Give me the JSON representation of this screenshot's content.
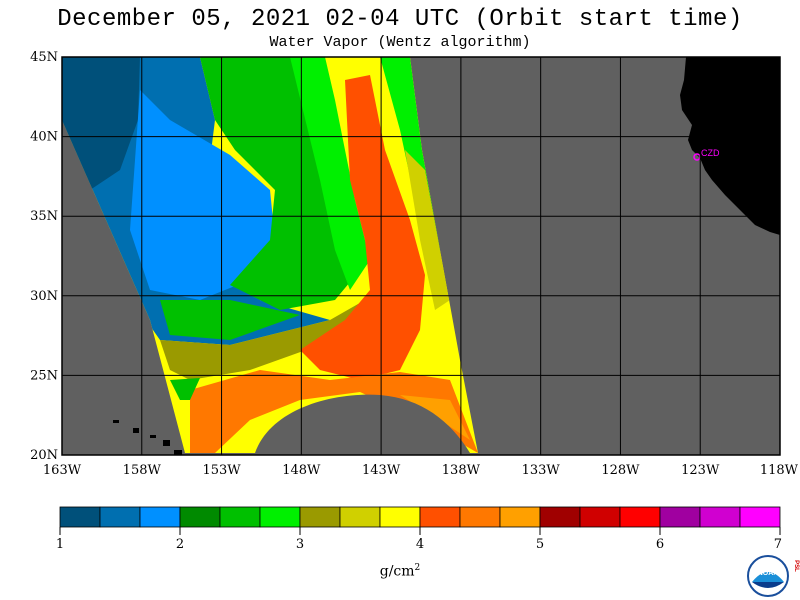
{
  "title": "December 05, 2021  02-04 UTC  (Orbit start time)",
  "subtitle": "Water Vapor (Wentz algorithm)",
  "map": {
    "lon_range": [
      -163,
      -118
    ],
    "lat_range": [
      20,
      45
    ],
    "lat_labels": [
      "45N",
      "40N",
      "35N",
      "30N",
      "25N",
      "20N"
    ],
    "lat_values": [
      45,
      40,
      35,
      30,
      25,
      20
    ],
    "lon_labels": [
      "163W",
      "158W",
      "153W",
      "148W",
      "143W",
      "138W",
      "133W",
      "128W",
      "123W",
      "118W"
    ],
    "lon_values": [
      -163,
      -158,
      -153,
      -148,
      -143,
      -138,
      -133,
      -128,
      -123,
      -118
    ],
    "station_label": "CZD",
    "colors": {
      "no_data": "#606060",
      "land": "#000000",
      "station": "#ff00ff",
      "grid": "#000000"
    }
  },
  "colorbar": {
    "unit_base": "g/cm",
    "unit_exp": "2",
    "tick_labels": [
      "1",
      "2",
      "3",
      "4",
      "5",
      "6",
      "7"
    ],
    "tick_values": [
      1,
      2,
      3,
      4,
      5,
      6,
      7
    ],
    "colors": [
      "#00507a",
      "#006fb0",
      "#0090ff",
      "#008a00",
      "#00c000",
      "#00f000",
      "#9a9a00",
      "#d0d000",
      "#ffff00",
      "#ff5000",
      "#ff7800",
      "#ffa000",
      "#a00000",
      "#d00000",
      "#ff0000",
      "#a000a0",
      "#d000d0",
      "#ff00ff"
    ]
  },
  "logo": {
    "name": "NOAA",
    "side": "PSL"
  }
}
